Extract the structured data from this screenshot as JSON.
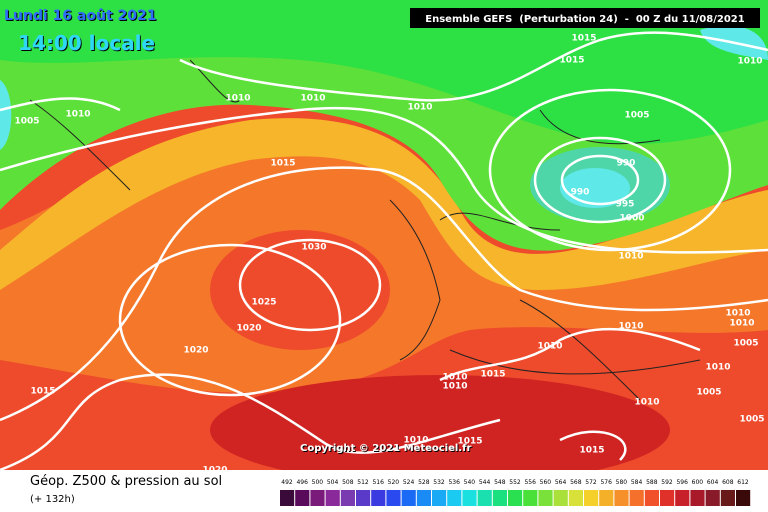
{
  "header": {
    "title": "Lundi 16 août 2021",
    "time": "14:00 locale",
    "model": "Ensemble GEFS  (Perturbation 24)  -  00 Z du 11/08/2021"
  },
  "map": {
    "pressure_labels": [
      "1015",
      "1015",
      "1010",
      "1010",
      "1010",
      "1010",
      "1005",
      "1010",
      "1005",
      "1015",
      "990",
      "990",
      "995",
      "1000",
      "1030",
      "1010",
      "1025",
      "1020",
      "1010",
      "1010",
      "1010",
      "1005",
      "1010",
      "1020",
      "1010",
      "1015",
      "1010",
      "1010",
      "1015",
      "1005",
      "1010",
      "1010",
      "1015",
      "1005",
      "1015",
      "1020"
    ],
    "copyright": "Copyright © 2021 Meteociel.fr"
  },
  "footer": {
    "title": "Géop. Z500 & pression au sol",
    "lead": "(+ 132h)",
    "scale": [
      "492",
      "496",
      "500",
      "504",
      "508",
      "512",
      "516",
      "520",
      "524",
      "528",
      "532",
      "536",
      "540",
      "544",
      "548",
      "552",
      "556",
      "560",
      "564",
      "568",
      "572",
      "576",
      "580",
      "584",
      "588",
      "592",
      "596",
      "600",
      "604",
      "608",
      "612"
    ]
  }
}
